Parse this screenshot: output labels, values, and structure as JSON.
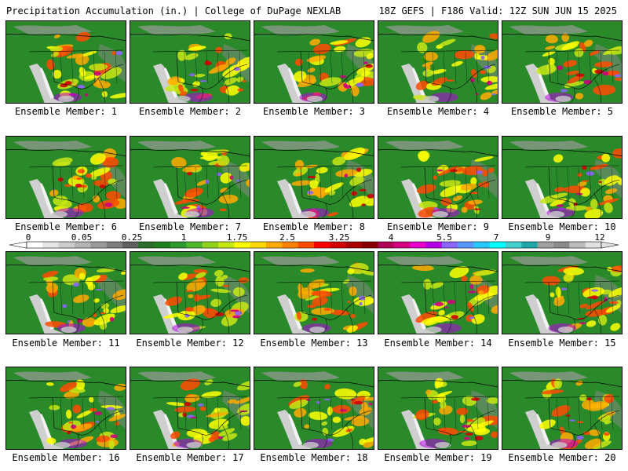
{
  "header": {
    "title_left": "Precipitation Accumulation (in.) | College of DuPage NEXLAB",
    "title_right": "18Z GEFS | F186 Valid: 12Z SUN JUN 15 2025"
  },
  "panels": [
    {
      "caption": "Ensemble Member: 1"
    },
    {
      "caption": "Ensemble Member: 2"
    },
    {
      "caption": "Ensemble Member: 3"
    },
    {
      "caption": "Ensemble Member: 4"
    },
    {
      "caption": "Ensemble Member: 5"
    },
    {
      "caption": "Ensemble Member: 6"
    },
    {
      "caption": "Ensemble Member: 7"
    },
    {
      "caption": "Ensemble Member: 8"
    },
    {
      "caption": "Ensemble Member: 9"
    },
    {
      "caption": "Ensemble Member: 10"
    },
    {
      "caption": "Ensemble Member: 11"
    },
    {
      "caption": "Ensemble Member: 12"
    },
    {
      "caption": "Ensemble Member: 13"
    },
    {
      "caption": "Ensemble Member: 14"
    },
    {
      "caption": "Ensemble Member: 15"
    },
    {
      "caption": "Ensemble Member: 16"
    },
    {
      "caption": "Ensemble Member: 17"
    },
    {
      "caption": "Ensemble Member: 18"
    },
    {
      "caption": "Ensemble Member: 19"
    },
    {
      "caption": "Ensemble Member: 20"
    }
  ],
  "colorbar": {
    "labels": [
      "0",
      "0.05",
      "0.25",
      "1",
      "1.75",
      "2.5",
      "3.25",
      "4",
      "5.5",
      "7",
      "9",
      "12"
    ],
    "colors": [
      "#ffffff",
      "#e6e6e6",
      "#cccccc",
      "#b4b4b4",
      "#9a9a9a",
      "#7e7e7e",
      "#606060",
      "#2a6e2a",
      "#1f7f1f",
      "#2e9a2e",
      "#4fb82a",
      "#8fd21c",
      "#c8e614",
      "#ffff00",
      "#ffd800",
      "#ffaa00",
      "#ff7f00",
      "#ff4a00",
      "#ff0000",
      "#d40000",
      "#aa0000",
      "#880000",
      "#b00058",
      "#d2007e",
      "#e600c8",
      "#b400e6",
      "#8c64ff",
      "#5a96ff",
      "#28c8ff",
      "#00ffff",
      "#40d0d0",
      "#20a8a8",
      "#a0a0a0",
      "#8c8c8c",
      "#bcbcbc",
      "#e0e0e0"
    ]
  }
}
